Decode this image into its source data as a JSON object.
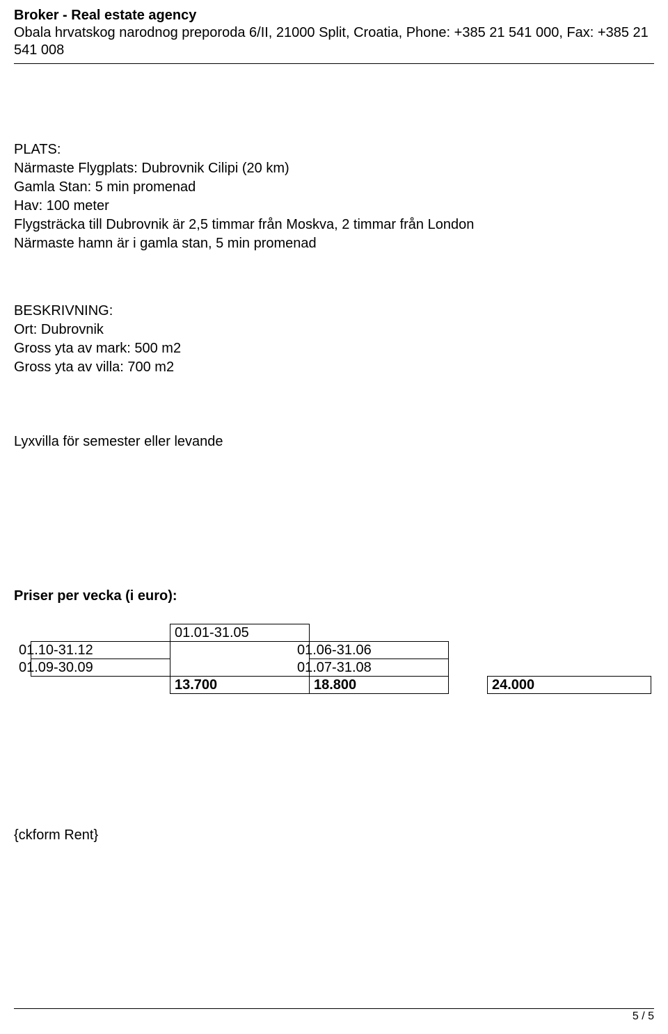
{
  "header": {
    "title": "Broker - Real estate agency",
    "contact": "Obala hrvatskog narodnog preporoda 6/II, 21000 Split, Croatia, Phone: +385 21 541 000, Fax: +385 21 541 008"
  },
  "plats": {
    "label": "PLATS:",
    "airport": "Närmaste Flygplats: Dubrovnik Cilipi (20 km)",
    "oldtown": "Gamla Stan: 5 min promenad",
    "sea": "Hav: 100 meter",
    "flight": "Flygsträcka till Dubrovnik är 2,5 timmar från Moskva, 2 timmar från London",
    "harbor": "Närmaste hamn är i gamla stan, 5 min promenad"
  },
  "beskrivning": {
    "label": "BESKRIVNING:",
    "ort": "Ort: Dubrovnik",
    "mark": "Gross yta av mark: 500 m2",
    "villa": "Gross yta av villa: 700 m2"
  },
  "tagline": "Lyxvilla för semester eller levande",
  "priser": {
    "heading": "Priser per vecka (i euro):",
    "cells": {
      "r0c0": " ",
      "r0c1": "01.01-31.05",
      "r1c0": "01.10-31.12",
      "r1c2": "01.06-31.06",
      "r2c0": "01.09-30.09",
      "r2c2": "01.07-31.08",
      "r3c0": " ",
      "r3c1": "13.700",
      "r3c2b": "18.800",
      "r3c3": "24.000"
    }
  },
  "ckform": "{ckform Rent}",
  "page_number": "5 / 5"
}
